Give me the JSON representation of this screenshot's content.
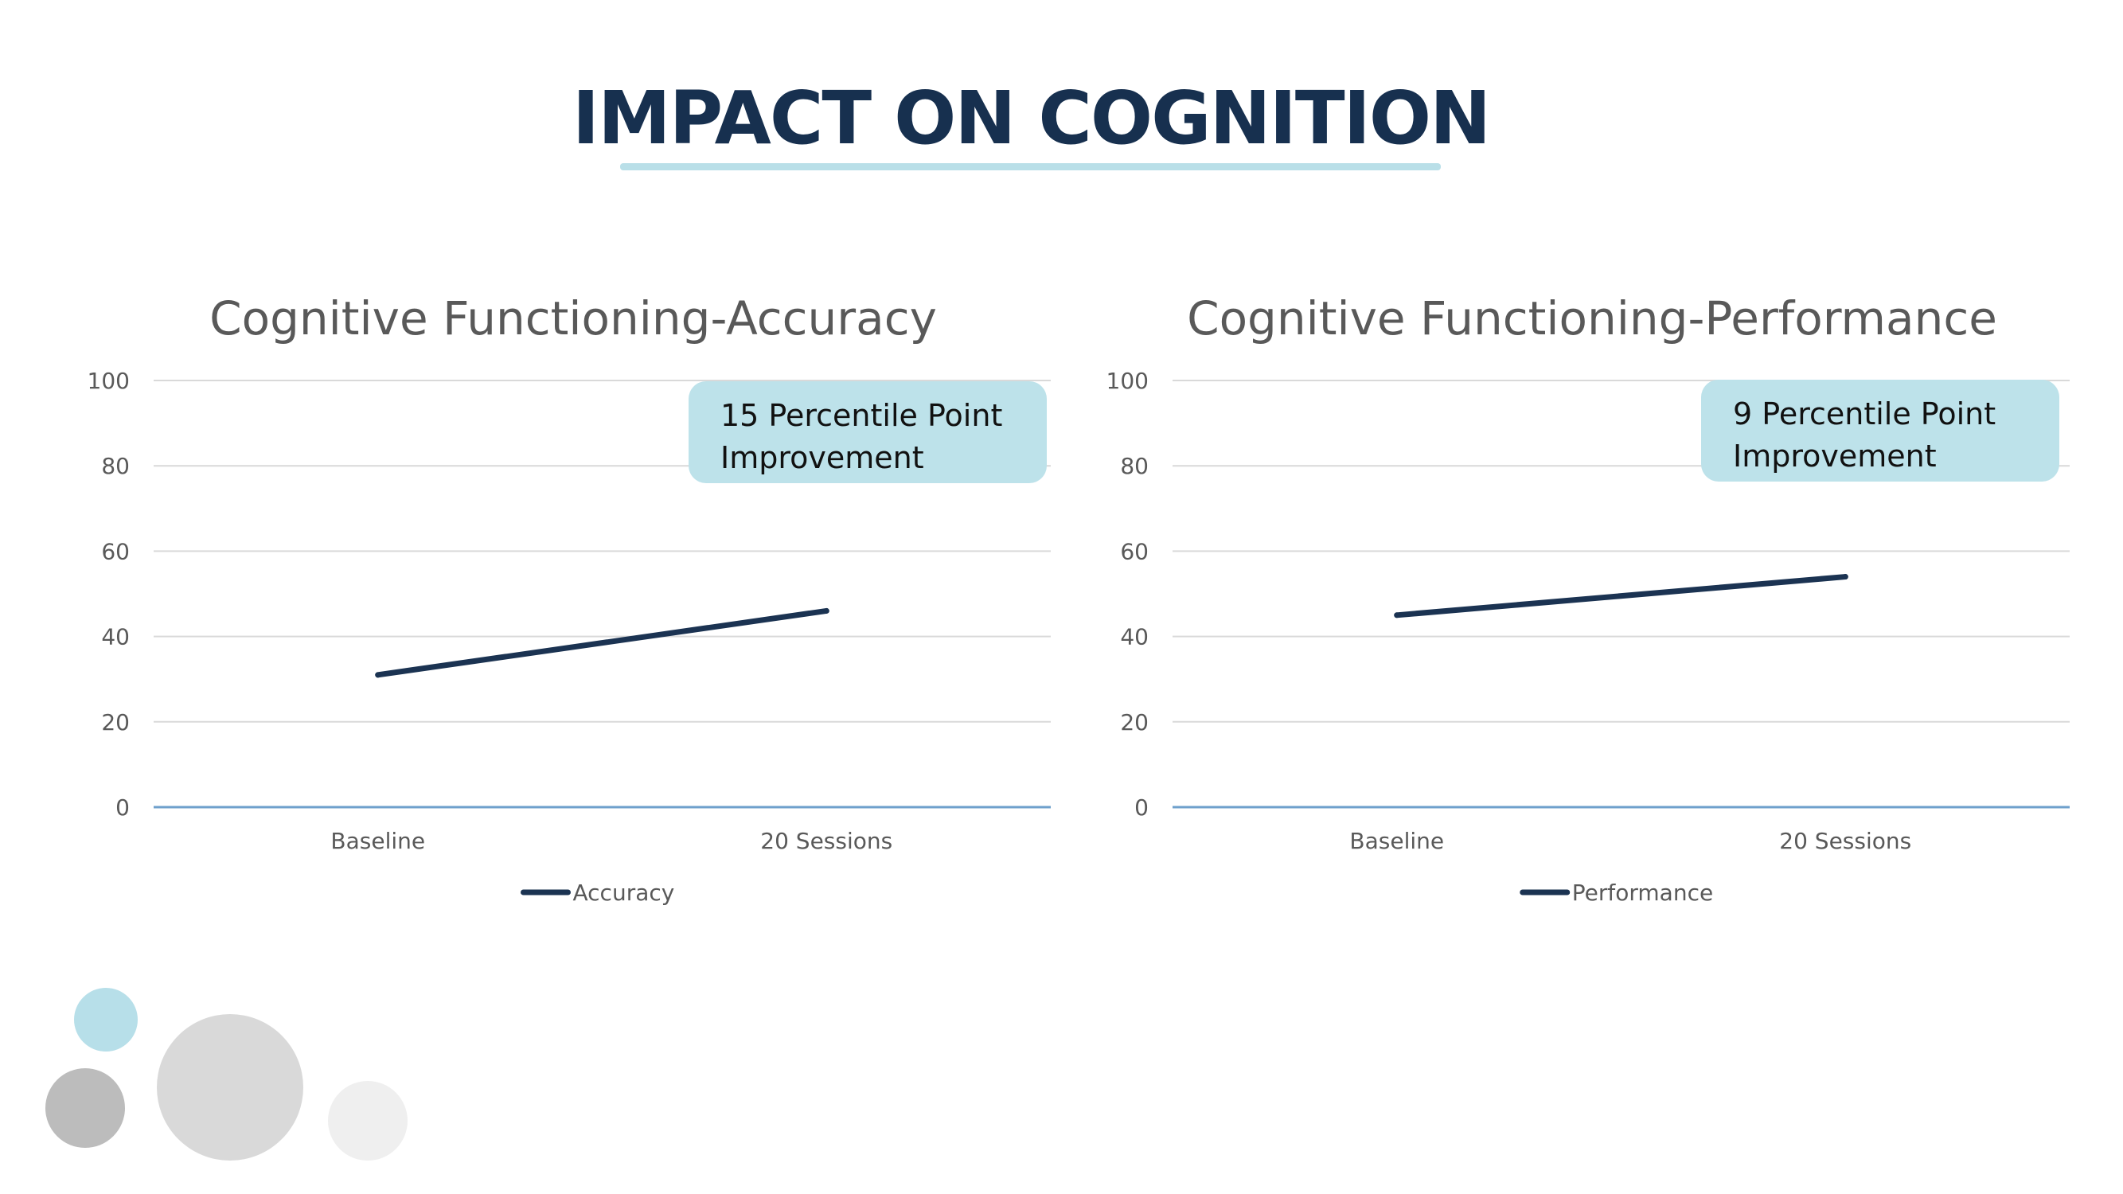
{
  "slide": {
    "title": "IMPACT ON COGNITION"
  },
  "colors": {
    "title": "#17304f",
    "line": "#1b3352",
    "callout": "#bde2ea",
    "grid": "#d9d9d9",
    "axis": "#6fa0cc"
  },
  "chart_data": [
    {
      "type": "line",
      "title": "Cognitive Functioning-Accuracy",
      "categories": [
        "Baseline",
        "20 Sessions"
      ],
      "series": [
        {
          "name": "Accuracy",
          "values": [
            31,
            46
          ]
        }
      ],
      "ylim": [
        0,
        100
      ],
      "yticks": [
        0,
        20,
        40,
        60,
        80,
        100
      ],
      "grid": true,
      "legend": "bottom",
      "callout": {
        "lines": [
          "15 Percentile Point",
          "Improvement"
        ]
      }
    },
    {
      "type": "line",
      "title": "Cognitive Functioning-Performance",
      "categories": [
        "Baseline",
        "20 Sessions"
      ],
      "series": [
        {
          "name": "Performance",
          "values": [
            45,
            54
          ]
        }
      ],
      "ylim": [
        0,
        100
      ],
      "yticks": [
        0,
        20,
        40,
        60,
        80,
        100
      ],
      "grid": true,
      "legend": "bottom",
      "callout": {
        "lines": [
          "9 Percentile Point",
          "Improvement"
        ]
      }
    }
  ]
}
